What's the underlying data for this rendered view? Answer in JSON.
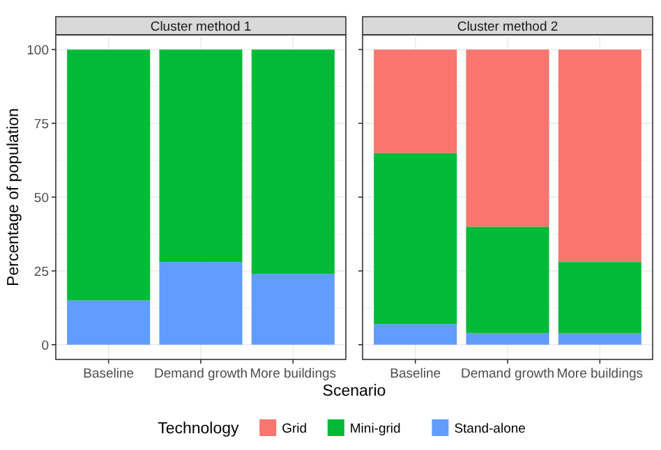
{
  "chart_data": [
    {
      "type": "bar",
      "title": "Cluster method 1",
      "xlabel": "Scenario",
      "ylabel": "Percentage of population",
      "stacked": true,
      "grid": true,
      "categories": [
        "Baseline",
        "Demand growth",
        "More buildings"
      ],
      "ylim": [
        -5,
        105
      ],
      "yticks": [
        0,
        25,
        50,
        75,
        100
      ],
      "series": [
        {
          "color": "#619cff",
          "values": [
            15,
            28,
            24
          ]
        },
        {
          "color": "#00ba38",
          "values": [
            85,
            72,
            76
          ]
        }
      ]
    },
    {
      "type": "bar",
      "title": "Cluster method 2",
      "legend_title": "Technology",
      "legend": "bottom",
      "stacked": true,
      "grid": true,
      "tick_labels": "x",
      "categories": [
        "Baseline",
        "Demand growth",
        "More buildings"
      ],
      "ylim": [
        -5,
        105
      ],
      "yticks": [
        0,
        25,
        50,
        75,
        100
      ],
      "series": [
        {
          "name": "Stand-alone",
          "color": "#619cff",
          "values": [
            7,
            4,
            4
          ]
        },
        {
          "name": "Mini-grid",
          "color": "#00ba38",
          "values": [
            58,
            36,
            24
          ]
        },
        {
          "name": "Grid",
          "color": "#f8766d",
          "values": [
            35,
            60,
            72
          ]
        }
      ]
    }
  ]
}
